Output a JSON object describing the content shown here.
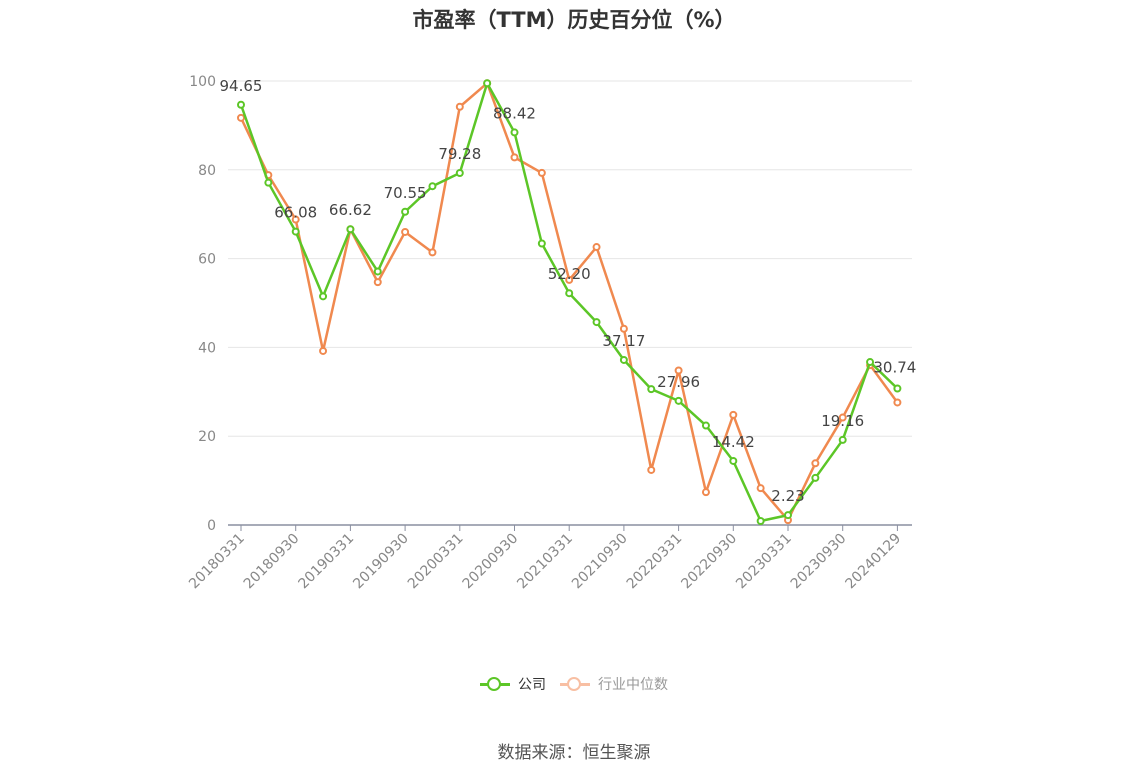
{
  "chart_data": {
    "type": "line",
    "title": "市盈率（TTM）历史百分位（%）",
    "x": [
      "20180331",
      "20180630",
      "20180930",
      "20181231",
      "20190331",
      "20190630",
      "20190930",
      "20191231",
      "20200331",
      "20200630",
      "20200930",
      "20201231",
      "20210331",
      "20210630",
      "20210930",
      "20211231",
      "20220331",
      "20220630",
      "20220930",
      "20221231",
      "20230331",
      "20230630",
      "20230930",
      "20231231",
      "20240129"
    ],
    "x_tick_labels": [
      "20180331",
      "20180930",
      "20190331",
      "20190930",
      "20200331",
      "20200930",
      "20210331",
      "20210930",
      "20220331",
      "20220930",
      "20230331",
      "20230930",
      "20240129"
    ],
    "ylim": [
      0,
      100
    ],
    "y_ticks": [
      0,
      20,
      40,
      60,
      80,
      100
    ],
    "grid": true,
    "legend_position": "bottom",
    "series": [
      {
        "name": "公司",
        "color": "#5cc627",
        "values": [
          94.65,
          77.1,
          66.08,
          51.5,
          66.62,
          57.1,
          70.55,
          76.3,
          79.28,
          99.5,
          88.42,
          63.4,
          52.2,
          45.7,
          37.17,
          30.6,
          27.96,
          22.4,
          14.42,
          0.9,
          2.23,
          10.6,
          19.16,
          36.7,
          30.74
        ],
        "data_labels": [
          {
            "index": 0,
            "text": "94.65"
          },
          {
            "index": 2,
            "text": "66.08"
          },
          {
            "index": 4,
            "text": "66.62"
          },
          {
            "index": 6,
            "text": "70.55"
          },
          {
            "index": 8,
            "text": "79.28"
          },
          {
            "index": 10,
            "text": "88.42"
          },
          {
            "index": 12,
            "text": "52.20"
          },
          {
            "index": 14,
            "text": "37.17"
          },
          {
            "index": 16,
            "text": "27.96"
          },
          {
            "index": 18,
            "text": "14.42"
          },
          {
            "index": 20,
            "text": "2.23"
          },
          {
            "index": 22,
            "text": "19.16"
          },
          {
            "index": 24,
            "text": "30.74"
          }
        ]
      },
      {
        "name": "行业中位数",
        "color": "#f0894f",
        "legend_color": "#f8bfa3",
        "values": [
          91.7,
          78.8,
          68.8,
          39.2,
          66.6,
          54.7,
          66.0,
          61.4,
          94.2,
          99.5,
          82.8,
          79.3,
          55.2,
          62.6,
          44.2,
          12.4,
          34.8,
          7.4,
          24.8,
          8.3,
          1.1,
          13.9,
          24.2,
          36.0,
          27.6
        ]
      }
    ]
  },
  "legend": {
    "company": "公司",
    "industry": "行业中位数"
  },
  "source": "数据来源：恒生聚源",
  "colors": {
    "axis": "#8a8fa0",
    "grid": "#e6e6e6",
    "tick_text": "#888888",
    "label_text": "#444444",
    "legend_inactive_text": "#999999"
  }
}
